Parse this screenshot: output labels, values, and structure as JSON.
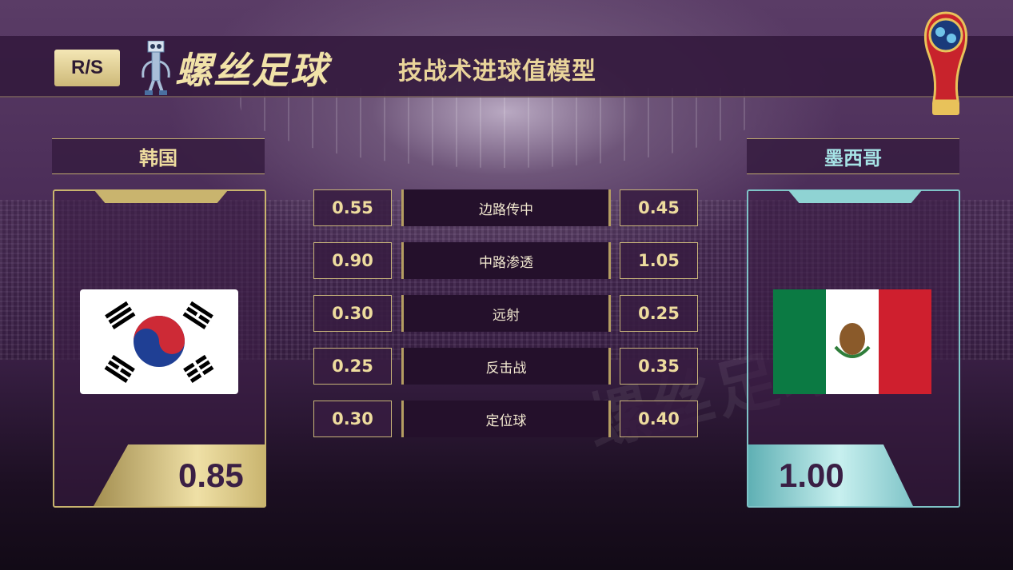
{
  "header": {
    "badge": "R/S",
    "logo_text": "螺丝足球",
    "title": "技战术进球值模型"
  },
  "home": {
    "name": "韩国",
    "score": "0.85",
    "flag": "south-korea-flag",
    "accent": "#c9b46e"
  },
  "away": {
    "name": "墨西哥",
    "score": "1.00",
    "flag": "mexico-flag",
    "accent": "#8fd3d3"
  },
  "rows": [
    {
      "label": "边路传中",
      "home": "0.55",
      "away": "0.45"
    },
    {
      "label": "中路渗透",
      "home": "0.90",
      "away": "1.05"
    },
    {
      "label": "远射",
      "home": "0.30",
      "away": "0.25"
    },
    {
      "label": "反击战",
      "home": "0.25",
      "away": "0.35"
    },
    {
      "label": "定位球",
      "home": "0.30",
      "away": "0.40"
    }
  ],
  "watermark": "螺丝足球",
  "icons": {
    "trophy": "world-cup-trophy-icon",
    "robot": "robot-mascot-icon"
  }
}
